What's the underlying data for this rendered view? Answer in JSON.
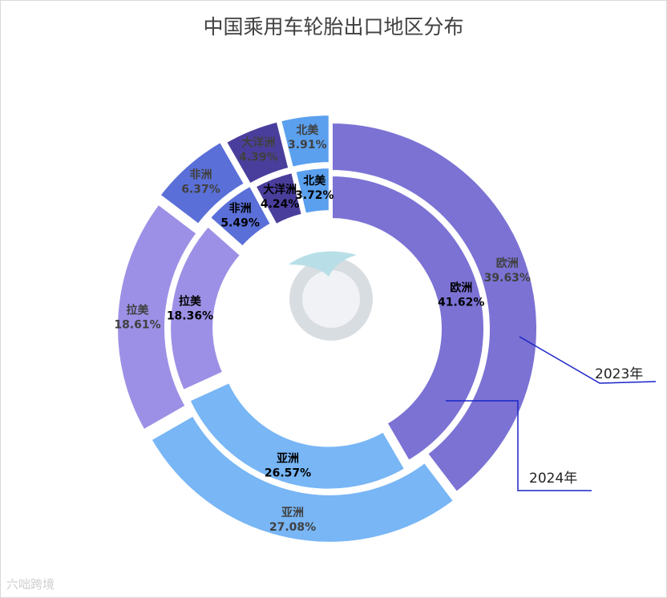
{
  "title": "中国乘用车轮胎出口地区分布",
  "colors": {
    "欧洲": "#7b72d4",
    "亚洲": "#78b6f5",
    "拉美": "#9c90e6",
    "非洲": "#5a6fd8",
    "大洋洲": "#4a3e9c",
    "北美": "#5aa0ee"
  },
  "chart_data": {
    "type": "pie",
    "series": [
      {
        "name": "2023年",
        "labels": [
          "欧洲",
          "亚洲",
          "拉美",
          "非洲",
          "大洋洲",
          "北美"
        ],
        "values": [
          39.63,
          27.08,
          18.61,
          6.37,
          4.39,
          3.91
        ],
        "value_labels": [
          "39.63%",
          "27.08%",
          "18.61%",
          "6.37%",
          "4.39%",
          "3.91%"
        ]
      },
      {
        "name": "2024年",
        "labels": [
          "欧洲",
          "亚洲",
          "拉美",
          "非洲",
          "大洋洲",
          "北美"
        ],
        "values": [
          41.62,
          26.57,
          18.36,
          5.49,
          4.24,
          3.72
        ],
        "value_labels": [
          "41.62%",
          "26.57%",
          "18.36%",
          "5.49%",
          "4.24%",
          "3.72%"
        ]
      }
    ]
  },
  "watermark": "六咄跨境"
}
